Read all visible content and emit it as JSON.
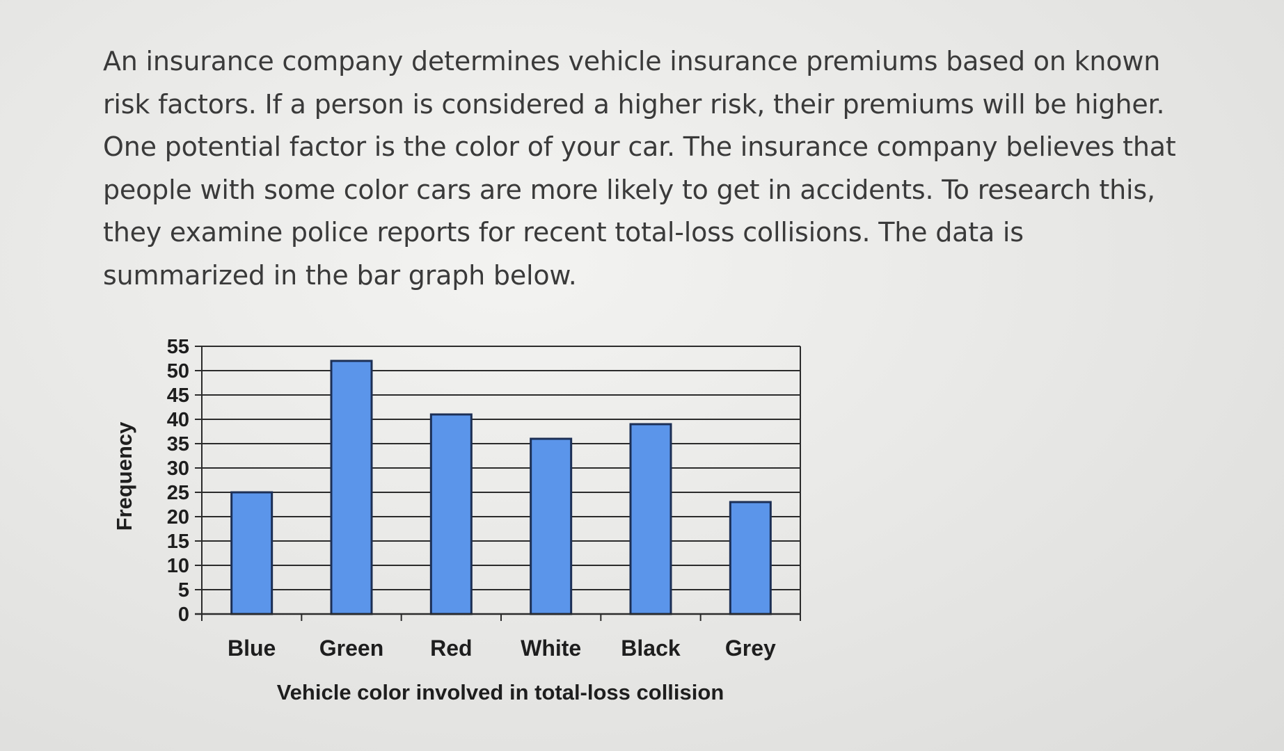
{
  "problem": {
    "text": "An insurance company determines vehicle insurance premiums based on known risk factors. If a person is considered a higher risk, their premiums will be higher. One potential factor is the color of your car. The insurance company believes that people with some color cars are more likely to get in accidents. To research this, they examine police reports for recent total-loss collisions. The data is summarized in the bar graph below."
  },
  "chart_data": {
    "type": "bar",
    "categories": [
      "Blue",
      "Green",
      "Red",
      "White",
      "Black",
      "Grey"
    ],
    "values": [
      25,
      52,
      41,
      36,
      39,
      23
    ],
    "title": "",
    "xlabel": "Vehicle color involved in total-loss collision",
    "ylabel": "Frequency",
    "ylim": [
      0,
      55
    ],
    "yticks": [
      0,
      5,
      10,
      15,
      20,
      25,
      30,
      35,
      40,
      45,
      50,
      55
    ],
    "grid": true,
    "legend": "none",
    "bar_color": "#5b95ea",
    "bar_edge_color": "#1c2f55"
  }
}
